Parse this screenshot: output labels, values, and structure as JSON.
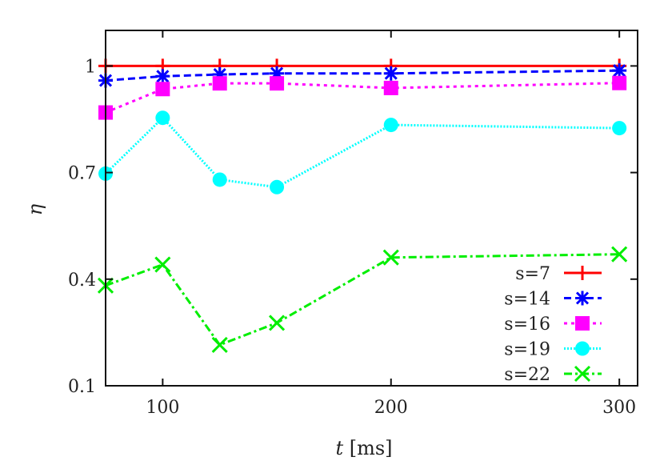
{
  "chart_data": {
    "type": "line",
    "title": "",
    "xlabel_italic": "t",
    "xlabel_unit": "[ms]",
    "ylabel": "η",
    "xlim": [
      75,
      308
    ],
    "ylim": [
      0.1,
      1.1
    ],
    "xticks": [
      100,
      200,
      300
    ],
    "yticks": [
      0.1,
      0.4,
      0.7,
      1
    ],
    "xtick_labels": [
      "100",
      "200",
      "300"
    ],
    "ytick_labels": [
      "0.1",
      "0.4",
      "0.7",
      "1"
    ],
    "grid": false,
    "legend_placement": "bottom-right",
    "x": [
      75,
      100,
      125,
      150,
      200,
      300
    ],
    "series": [
      {
        "name": "s=7",
        "color": "#ff0000",
        "line": "solid",
        "marker": "plus",
        "values": [
          1.0,
          1.0,
          1.0,
          1.0,
          1.0,
          1.0
        ]
      },
      {
        "name": "s=14",
        "color": "#0000ff",
        "line": "dashed",
        "marker": "asterisk",
        "values": [
          0.959,
          0.971,
          0.976,
          0.979,
          0.979,
          0.987
        ]
      },
      {
        "name": "s=16",
        "color": "#ff00ff",
        "line": "dotted",
        "marker": "square",
        "values": [
          0.869,
          0.935,
          0.951,
          0.951,
          0.938,
          0.952
        ]
      },
      {
        "name": "s=19",
        "color": "#00ffff",
        "line": "dotted-fine",
        "marker": "circle",
        "values": [
          0.697,
          0.854,
          0.68,
          0.659,
          0.834,
          0.825
        ]
      },
      {
        "name": "s=22",
        "color": "#00ee00",
        "line": "dash-dot",
        "marker": "cross",
        "values": [
          0.382,
          0.441,
          0.215,
          0.277,
          0.461,
          0.47
        ]
      }
    ]
  }
}
